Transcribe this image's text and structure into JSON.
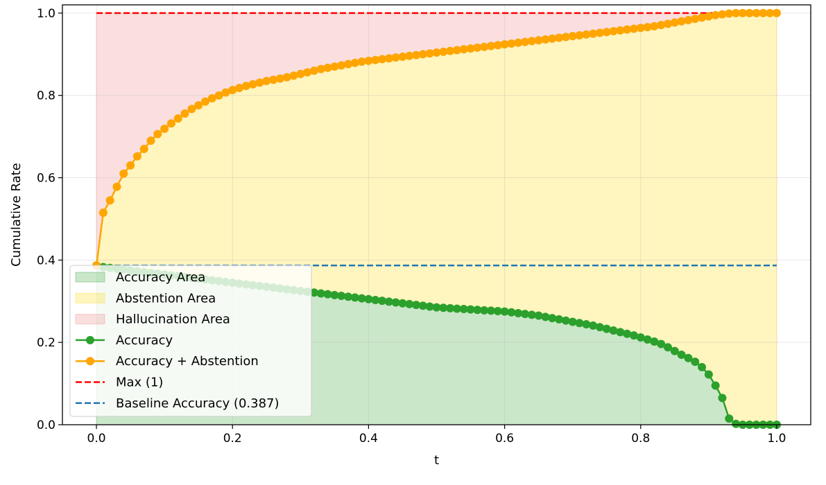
{
  "chart_data": {
    "type": "line",
    "title": "",
    "xlabel": "t",
    "ylabel": "Cumulative Rate",
    "xlim": [
      -0.05,
      1.05
    ],
    "ylim": [
      0.0,
      1.02
    ],
    "xticks": [
      "0.0",
      "0.2",
      "0.4",
      "0.6",
      "0.8",
      "1.0"
    ],
    "yticks": [
      "0.0",
      "0.2",
      "0.4",
      "0.6",
      "0.8",
      "1.0"
    ],
    "grid": true,
    "legend_position": "lower-left",
    "x": [
      0.0,
      0.01,
      0.02,
      0.03,
      0.04,
      0.05,
      0.06,
      0.07,
      0.08,
      0.09,
      0.1,
      0.11,
      0.12,
      0.13,
      0.14,
      0.15,
      0.16,
      0.17,
      0.18,
      0.19,
      0.2,
      0.21,
      0.22,
      0.23,
      0.24,
      0.25,
      0.26,
      0.27,
      0.28,
      0.29,
      0.3,
      0.31,
      0.32,
      0.33,
      0.34,
      0.35,
      0.36,
      0.37,
      0.38,
      0.39,
      0.4,
      0.41,
      0.42,
      0.43,
      0.44,
      0.45,
      0.46,
      0.47,
      0.48,
      0.49,
      0.5,
      0.51,
      0.52,
      0.53,
      0.54,
      0.55,
      0.56,
      0.57,
      0.58,
      0.59,
      0.6,
      0.61,
      0.62,
      0.63,
      0.64,
      0.65,
      0.66,
      0.67,
      0.68,
      0.69,
      0.7,
      0.71,
      0.72,
      0.73,
      0.74,
      0.75,
      0.76,
      0.77,
      0.78,
      0.79,
      0.8,
      0.81,
      0.82,
      0.83,
      0.84,
      0.85,
      0.86,
      0.87,
      0.88,
      0.89,
      0.9,
      0.91,
      0.92,
      0.93,
      0.94,
      0.95,
      0.96,
      0.97,
      0.98,
      0.99,
      1.0
    ],
    "series": [
      {
        "name": "Accuracy",
        "color": "#2ca02c",
        "values": [
          0.387,
          0.383,
          0.381,
          0.379,
          0.377,
          0.375,
          0.373,
          0.371,
          0.369,
          0.367,
          0.365,
          0.363,
          0.361,
          0.359,
          0.357,
          0.355,
          0.353,
          0.351,
          0.349,
          0.347,
          0.345,
          0.343,
          0.341,
          0.339,
          0.337,
          0.335,
          0.333,
          0.331,
          0.329,
          0.327,
          0.325,
          0.323,
          0.321,
          0.319,
          0.317,
          0.315,
          0.313,
          0.311,
          0.309,
          0.307,
          0.305,
          0.303,
          0.301,
          0.299,
          0.297,
          0.295,
          0.293,
          0.291,
          0.289,
          0.287,
          0.285,
          0.284,
          0.283,
          0.282,
          0.281,
          0.28,
          0.279,
          0.278,
          0.277,
          0.276,
          0.275,
          0.273,
          0.271,
          0.269,
          0.267,
          0.265,
          0.262,
          0.259,
          0.256,
          0.253,
          0.25,
          0.247,
          0.244,
          0.241,
          0.237,
          0.233,
          0.229,
          0.225,
          0.221,
          0.217,
          0.212,
          0.207,
          0.202,
          0.196,
          0.188,
          0.179,
          0.17,
          0.162,
          0.153,
          0.14,
          0.122,
          0.095,
          0.065,
          0.015,
          0.002,
          0.0,
          0.0,
          0.0,
          0.0,
          0.0,
          0.0
        ]
      },
      {
        "name": "Accuracy + Abstention",
        "color": "#ffa500",
        "values": [
          0.387,
          0.515,
          0.545,
          0.578,
          0.61,
          0.63,
          0.652,
          0.67,
          0.69,
          0.706,
          0.719,
          0.732,
          0.744,
          0.756,
          0.767,
          0.776,
          0.785,
          0.793,
          0.8,
          0.807,
          0.813,
          0.818,
          0.823,
          0.827,
          0.831,
          0.835,
          0.838,
          0.841,
          0.844,
          0.848,
          0.852,
          0.856,
          0.86,
          0.864,
          0.867,
          0.87,
          0.873,
          0.876,
          0.879,
          0.882,
          0.884,
          0.886,
          0.888,
          0.89,
          0.892,
          0.894,
          0.896,
          0.898,
          0.9,
          0.902,
          0.904,
          0.906,
          0.908,
          0.91,
          0.912,
          0.914,
          0.916,
          0.918,
          0.92,
          0.922,
          0.924,
          0.926,
          0.928,
          0.93,
          0.932,
          0.934,
          0.936,
          0.938,
          0.94,
          0.942,
          0.944,
          0.946,
          0.948,
          0.95,
          0.952,
          0.954,
          0.956,
          0.958,
          0.96,
          0.962,
          0.964,
          0.966,
          0.968,
          0.971,
          0.974,
          0.977,
          0.98,
          0.983,
          0.986,
          0.989,
          0.992,
          0.995,
          0.997,
          0.999,
          1.0,
          1.0,
          1.0,
          1.0,
          1.0,
          1.0,
          1.0
        ]
      }
    ],
    "reference_lines": [
      {
        "name": "Max (1)",
        "y": 1.0,
        "color": "#ff0000",
        "style": "dashed"
      },
      {
        "name": "Baseline Accuracy (0.387)",
        "y": 0.387,
        "color": "#1f77b4",
        "style": "dashed"
      }
    ],
    "areas": [
      {
        "name": "Accuracy Area",
        "color": "#2ca02c"
      },
      {
        "name": "Abstention Area",
        "color": "#ffd700"
      },
      {
        "name": "Hallucination Area",
        "color": "#f08080"
      }
    ]
  }
}
